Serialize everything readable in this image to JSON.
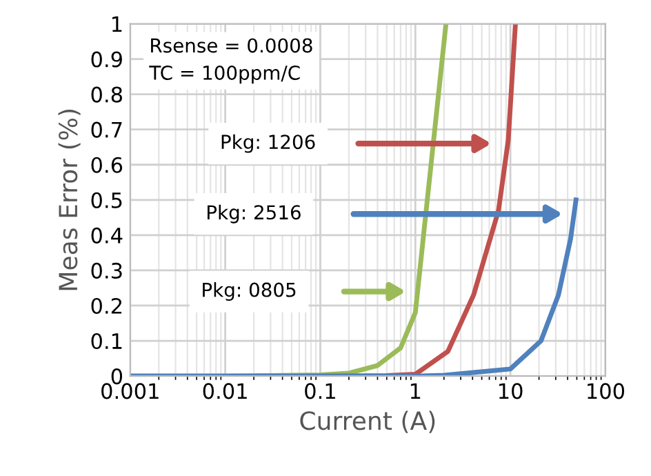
{
  "chart_data": {
    "type": "line",
    "xlabel": "Current (A)",
    "ylabel": "Meas Error (%)",
    "log": "x",
    "xlim": [
      0.001,
      100
    ],
    "xticks": [
      0.001,
      0.01,
      0.1,
      1,
      10,
      100
    ],
    "ylim": [
      0,
      1
    ],
    "yticks": [
      0,
      0.1,
      0.2,
      0.3,
      0.4,
      0.5,
      0.6,
      0.7,
      0.8,
      0.9,
      1
    ],
    "grid": true,
    "legend": false,
    "marker": "none",
    "line_style": "solid",
    "series": [
      {
        "color": "#9bbb59",
        "x": [
          0.001,
          0.01,
          0.1,
          0.2,
          0.4,
          0.7,
          1,
          2.1
        ],
        "values": [
          0,
          0,
          0.003,
          0.008,
          0.03,
          0.08,
          0.18,
          1
        ]
      },
      {
        "color": "#c0504d",
        "x": [
          0.001,
          0.1,
          0.5,
          1,
          2.2,
          4.1,
          7.5,
          9.5,
          11.3
        ],
        "values": [
          0,
          0,
          0.001,
          0.005,
          0.07,
          0.23,
          0.47,
          0.67,
          1
        ]
      },
      {
        "color": "#4f81bd",
        "x": [
          0.001,
          1,
          2,
          10,
          21,
          32,
          43,
          49
        ],
        "values": [
          0,
          0,
          0.002,
          0.02,
          0.1,
          0.23,
          0.39,
          0.5
        ]
      }
    ],
    "annotations": [
      "Rsense = 0.0008\nTC = 100ppm/C",
      "Pkg: 1206",
      "Pkg: 2516",
      "Pkg: 0805"
    ]
  }
}
